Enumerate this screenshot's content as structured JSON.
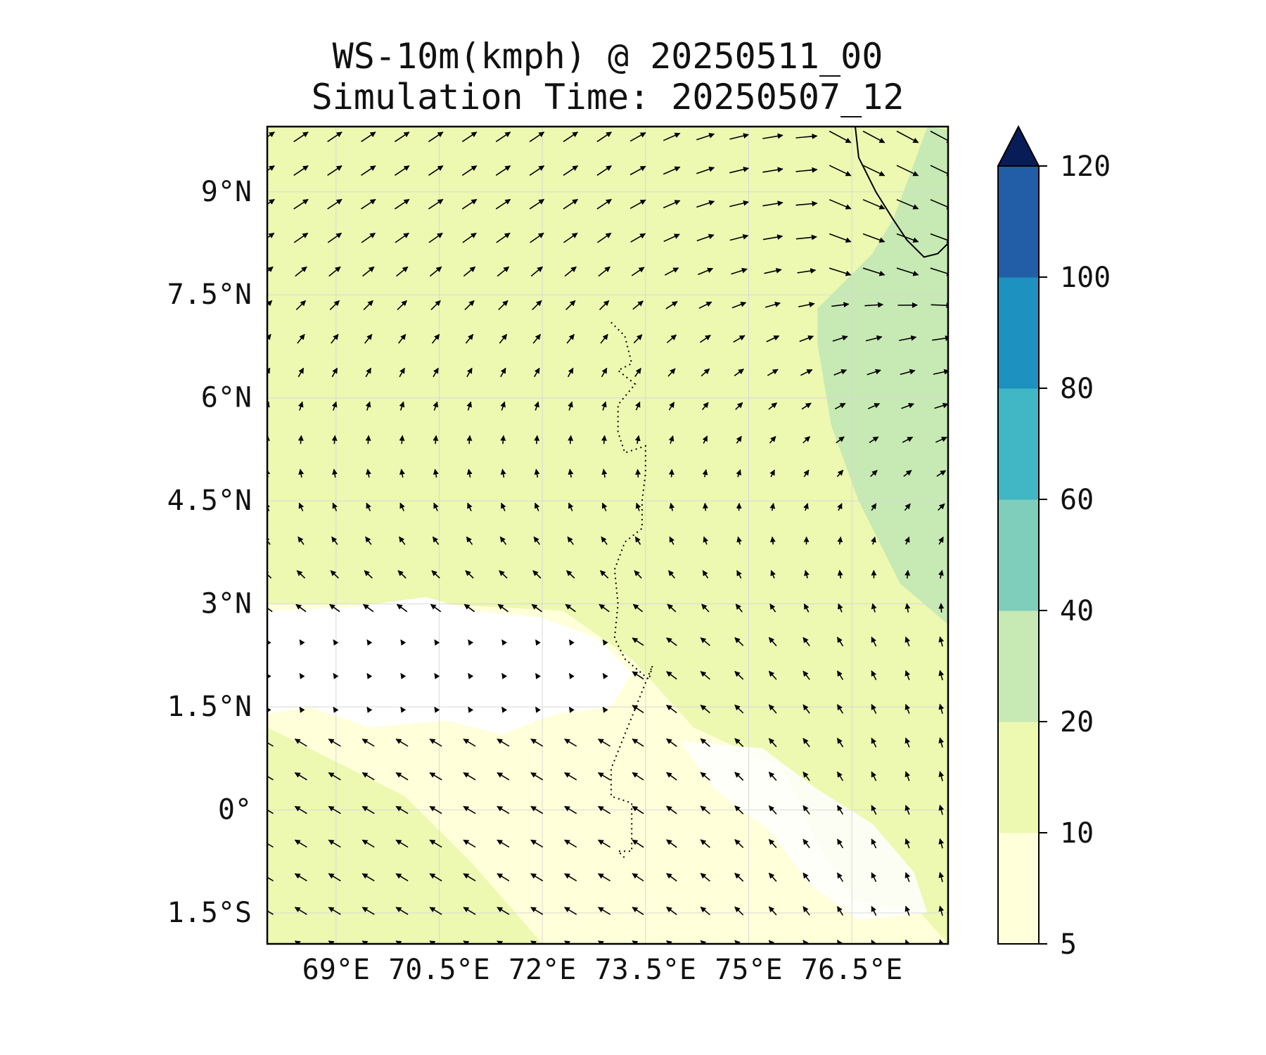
{
  "chart_data": {
    "type": "heatmap",
    "subtype": "wind speed filled contour map with wind vectors",
    "title": "WS-10m(kmph) @ 20250511_00",
    "subtitle": "Simulation Time: 20250507_12",
    "x_axis": {
      "ticks": [
        69,
        70.5,
        72,
        73.5,
        75,
        76.5
      ],
      "tick_labels": [
        "69°E",
        "70.5°E",
        "72°E",
        "73.5°E",
        "75°E",
        "76.5°E"
      ],
      "range": [
        68.0,
        77.9
      ]
    },
    "y_axis": {
      "ticks": [
        9,
        7.5,
        6,
        4.5,
        3,
        1.5,
        0,
        -1.5
      ],
      "tick_labels": [
        "9°N",
        "7.5°N",
        "6°N",
        "4.5°N",
        "3°N",
        "1.5°N",
        "0°",
        "1.5°S"
      ],
      "range": [
        -1.95,
        9.95
      ]
    },
    "grid": true,
    "colorbar": {
      "location": "right",
      "extend": "max",
      "levels": [
        5,
        10,
        20,
        40,
        60,
        80,
        100,
        120
      ],
      "tick_labels": [
        "5",
        "10",
        "20",
        "40",
        "60",
        "80",
        "100",
        "120"
      ],
      "colors": [
        "#ffffd9",
        "#edf8b1",
        "#c7e9b4",
        "#7fcdbb",
        "#41b6c4",
        "#1d91c0",
        "#225ea8",
        "#0c2c84"
      ],
      "extend_color": "#081d58"
    },
    "regions": [
      {
        "bin": "5-10",
        "description_label": "",
        "points": [
          [
            68.0,
            3.0
          ],
          [
            70.5,
            3.0
          ],
          [
            72.3,
            2.9
          ],
          [
            73.3,
            2.2
          ],
          [
            74.2,
            1.2
          ],
          [
            75.5,
            0.6
          ],
          [
            76.0,
            -0.5
          ],
          [
            76.5,
            -1.3
          ],
          [
            77.5,
            -1.5
          ],
          [
            77.9,
            -1.95
          ],
          [
            72.0,
            -1.95
          ],
          [
            71.0,
            -0.8
          ],
          [
            70.0,
            0.2
          ],
          [
            68.8,
            0.8
          ],
          [
            68.0,
            1.2
          ]
        ]
      },
      {
        "bin": "10-20",
        "points": [
          [
            68.0,
            9.95
          ],
          [
            77.9,
            9.95
          ],
          [
            77.9,
            -1.95
          ],
          [
            68.0,
            -1.95
          ]
        ]
      },
      {
        "bin": "20-40",
        "points": [
          [
            77.6,
            9.95
          ],
          [
            77.9,
            9.9
          ],
          [
            77.9,
            2.7
          ],
          [
            77.2,
            3.3
          ],
          [
            76.6,
            4.5
          ],
          [
            76.2,
            5.6
          ],
          [
            76.0,
            6.8
          ],
          [
            76.0,
            7.3
          ],
          [
            76.3,
            7.6
          ],
          [
            76.8,
            8.1
          ],
          [
            77.1,
            8.6
          ],
          [
            77.4,
            9.4
          ]
        ]
      }
    ],
    "wind_vectors": {
      "units": "kmph",
      "lon_start": 68.0,
      "lon_step": 0.49,
      "lat_start": 9.8,
      "lat_step": -0.49,
      "cols": 21,
      "rows": 25,
      "pattern": "north: southwest to west winds turning to easterly/southeasterly in the south; strong westerlies near the east edge"
    },
    "coastline": {
      "west_india": [
        [
          76.55,
          9.95
        ],
        [
          76.6,
          9.5
        ],
        [
          76.85,
          9.0
        ],
        [
          77.1,
          8.6
        ],
        [
          77.3,
          8.3
        ],
        [
          77.55,
          8.05
        ],
        [
          77.75,
          8.1
        ],
        [
          77.9,
          8.25
        ]
      ],
      "maldives_atolls": [
        [
          73.0,
          7.1
        ],
        [
          73.2,
          6.9
        ],
        [
          73.3,
          6.5
        ],
        [
          73.1,
          6.4
        ],
        [
          73.35,
          6.2
        ],
        [
          73.1,
          5.9
        ],
        [
          73.1,
          5.5
        ],
        [
          73.2,
          5.2
        ],
        [
          73.5,
          5.3
        ],
        [
          73.5,
          4.9
        ],
        [
          73.45,
          4.5
        ],
        [
          73.45,
          4.1
        ],
        [
          73.2,
          3.9
        ],
        [
          73.05,
          3.5
        ],
        [
          73.1,
          3.0
        ],
        [
          73.05,
          2.5
        ],
        [
          73.2,
          2.2
        ],
        [
          73.55,
          1.9
        ],
        [
          73.6,
          2.1
        ],
        [
          73.2,
          1.1
        ],
        [
          73.0,
          0.6
        ],
        [
          73.0,
          0.2
        ],
        [
          73.3,
          0.1
        ],
        [
          73.3,
          -0.6
        ],
        [
          73.1,
          -0.6
        ],
        [
          73.2,
          -0.7
        ]
      ]
    }
  }
}
